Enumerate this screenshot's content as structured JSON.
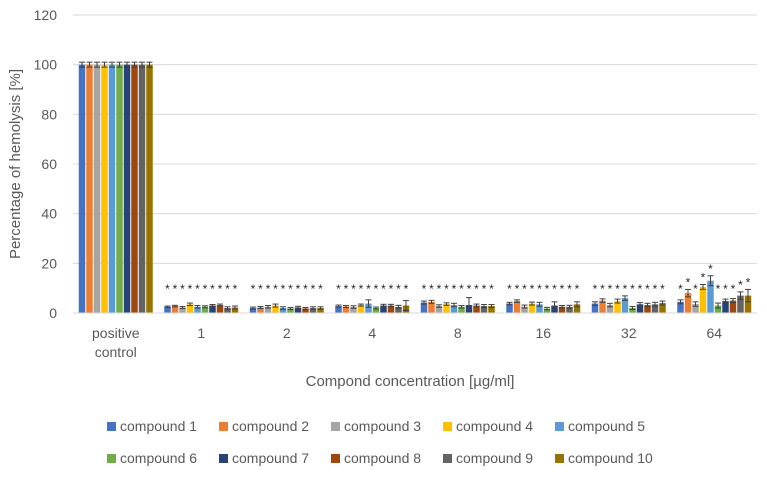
{
  "chart_data": {
    "type": "bar",
    "xlabel": "Compond concentration [µg/ml]",
    "ylabel": "Percentage of hemolysis [%]",
    "ylim": [
      0,
      120
    ],
    "yticks": [
      0,
      20,
      40,
      60,
      80,
      100,
      120
    ],
    "grid": true,
    "legend_position": "bottom",
    "categories": [
      "positive control",
      "1",
      "2",
      "4",
      "8",
      "16",
      "32",
      "64"
    ],
    "category_label_lines": [
      [
        "positive",
        "control"
      ],
      [
        "1"
      ],
      [
        "2"
      ],
      [
        "4"
      ],
      [
        "8"
      ],
      [
        "16"
      ],
      [
        "32"
      ],
      [
        "64"
      ]
    ],
    "significance_marker": "*",
    "series": [
      {
        "name": "compound 1",
        "color": "#4472C4",
        "values": [
          100,
          2.5,
          2.0,
          2.8,
          4.2,
          3.8,
          3.8,
          4.5
        ],
        "errors": [
          1,
          0.3,
          0.4,
          0.4,
          0.6,
          0.5,
          0.7,
          0.8
        ],
        "significant": [
          false,
          true,
          true,
          true,
          true,
          true,
          true,
          true
        ]
      },
      {
        "name": "compound 2",
        "color": "#ED7D31",
        "values": [
          100,
          2.8,
          2.2,
          2.6,
          4.5,
          4.8,
          5.0,
          8.0
        ],
        "errors": [
          1,
          0.3,
          0.4,
          0.4,
          0.6,
          0.5,
          0.7,
          1.5
        ],
        "significant": [
          false,
          true,
          true,
          true,
          true,
          true,
          true,
          true
        ]
      },
      {
        "name": "compound 3",
        "color": "#A5A5A5",
        "values": [
          100,
          2.2,
          2.5,
          2.4,
          2.8,
          2.6,
          3.2,
          3.6
        ],
        "errors": [
          1,
          0.4,
          0.5,
          0.5,
          0.5,
          0.6,
          0.7,
          0.9
        ],
        "significant": [
          false,
          true,
          true,
          true,
          true,
          true,
          true,
          true
        ]
      },
      {
        "name": "compound 4",
        "color": "#FFC000",
        "values": [
          100,
          3.5,
          3.0,
          3.2,
          3.6,
          3.8,
          4.8,
          10.5
        ],
        "errors": [
          1,
          0.5,
          0.6,
          0.4,
          0.5,
          0.6,
          0.8,
          1.0
        ],
        "significant": [
          false,
          true,
          true,
          true,
          true,
          true,
          true,
          true
        ]
      },
      {
        "name": "compound 5",
        "color": "#5B9BD5",
        "values": [
          100,
          2.5,
          2.0,
          3.8,
          3.2,
          3.5,
          6.0,
          13.0
        ],
        "errors": [
          1,
          0.5,
          0.5,
          1.5,
          0.7,
          0.8,
          0.9,
          2.0
        ],
        "significant": [
          false,
          true,
          true,
          true,
          true,
          true,
          true,
          true
        ]
      },
      {
        "name": "compound 6",
        "color": "#70AD47",
        "values": [
          100,
          2.5,
          1.8,
          2.0,
          2.5,
          1.8,
          2.0,
          3.0
        ],
        "errors": [
          1,
          0.4,
          0.4,
          0.4,
          0.5,
          0.5,
          0.6,
          1.0
        ],
        "significant": [
          false,
          true,
          true,
          true,
          true,
          true,
          true,
          true
        ]
      },
      {
        "name": "compound 7",
        "color": "#264478",
        "values": [
          100,
          3.0,
          2.2,
          3.0,
          3.2,
          3.0,
          3.5,
          4.8
        ],
        "errors": [
          1,
          0.4,
          0.5,
          0.5,
          3.0,
          1.5,
          0.7,
          0.8
        ],
        "significant": [
          false,
          true,
          true,
          true,
          true,
          true,
          true,
          true
        ]
      },
      {
        "name": "compound 8",
        "color": "#9E480E",
        "values": [
          100,
          3.2,
          1.8,
          3.0,
          3.0,
          2.5,
          3.2,
          5.0
        ],
        "errors": [
          1,
          0.4,
          0.4,
          0.5,
          0.6,
          0.5,
          0.7,
          0.8
        ],
        "significant": [
          false,
          true,
          true,
          true,
          true,
          true,
          true,
          true
        ]
      },
      {
        "name": "compound 9",
        "color": "#636363",
        "values": [
          100,
          2.0,
          2.0,
          2.5,
          2.8,
          2.5,
          3.5,
          7.0
        ],
        "errors": [
          1,
          0.5,
          0.5,
          0.6,
          0.6,
          0.6,
          0.8,
          1.5
        ],
        "significant": [
          false,
          true,
          true,
          true,
          true,
          true,
          true,
          true
        ]
      },
      {
        "name": "compound 10",
        "color": "#997300",
        "values": [
          100,
          2.2,
          2.0,
          3.0,
          2.8,
          3.5,
          4.0,
          7.0
        ],
        "errors": [
          1,
          0.6,
          0.5,
          2.0,
          0.6,
          1.0,
          0.8,
          2.5
        ],
        "significant": [
          false,
          true,
          true,
          true,
          true,
          true,
          true,
          true
        ]
      }
    ]
  }
}
